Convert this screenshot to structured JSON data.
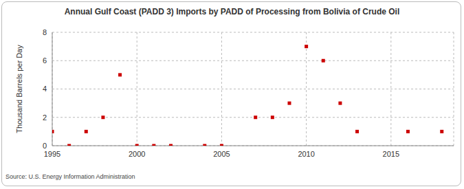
{
  "chart_data": {
    "type": "scatter",
    "title": "Annual Gulf Coast (PADD 3) Imports by PADD of Processing from Bolivia of Crude Oil",
    "y_label": "Thousand Barrels per Day",
    "source": "Source: U.S. Energy Information Administration",
    "x": [
      1995,
      1996,
      1997,
      1998,
      1999,
      2000,
      2001,
      2002,
      2004,
      2005,
      2007,
      2008,
      2009,
      2010,
      2011,
      2012,
      2013,
      2016,
      2018
    ],
    "values": [
      1,
      0,
      1,
      2,
      5,
      0,
      0,
      0,
      0,
      0,
      2,
      2,
      3,
      7,
      6,
      3,
      1,
      1,
      1
    ],
    "color": "#cc0000",
    "marker": "square",
    "xlim": [
      1995,
      2018.7
    ],
    "xticks": [
      1995,
      2000,
      2005,
      2010,
      2015
    ],
    "ylim": [
      0,
      8
    ],
    "yticks": [
      0,
      2,
      4,
      6,
      8
    ],
    "grid": true
  }
}
